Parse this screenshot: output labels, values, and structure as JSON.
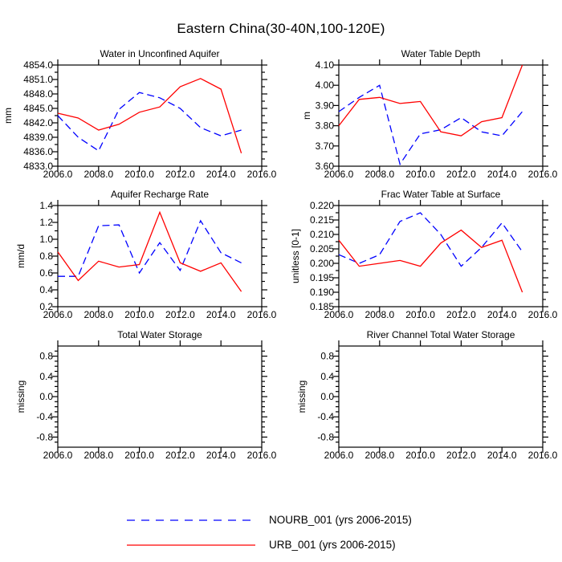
{
  "figure": {
    "title": "Eastern China(30-40N,100-120E)"
  },
  "chart_data": {
    "type": "line",
    "title": "Eastern China(30-40N,100-120E)",
    "x": [
      2006,
      2007,
      2008,
      2009,
      2010,
      2011,
      2012,
      2013,
      2014,
      2015
    ],
    "xlim": [
      2006,
      2016
    ],
    "xticks": {
      "values": [
        2006,
        2008,
        2010,
        2012,
        2014,
        2016
      ],
      "labels": [
        "2006.0",
        "2008.0",
        "2010.0",
        "2012.0",
        "2014.0",
        "2016.0"
      ]
    },
    "grid": false,
    "legend_position": "bottom",
    "series_meta": [
      {
        "id": "NOURB_001",
        "label": "NOURB_001 (yrs 2006-2015)",
        "color": "#0000ff",
        "style": "dashed"
      },
      {
        "id": "URB_001",
        "label": "URB_001 (yrs 2006-2015)",
        "color": "#ff0000",
        "style": "solid"
      }
    ],
    "panels": [
      {
        "title": "Water in Unconfined Aquifer",
        "ylabel": "mm",
        "ylim": [
          4833.0,
          4854.0
        ],
        "yticks": [
          4854.0,
          4851.0,
          4848.0,
          4845.0,
          4842.0,
          4839.0,
          4836.0,
          4833.0
        ],
        "ytick_labels": [
          "4854.0",
          "4851.0",
          "4848.0",
          "4845.0",
          "4842.0",
          "4839.0",
          "4836.0",
          "4833.0"
        ],
        "minor_divisions": 2,
        "series": {
          "NOURB_001": [
            4843.5,
            4839.0,
            4836.2,
            4844.8,
            4848.3,
            4847.2,
            4845.0,
            4841.0,
            4839.3,
            4840.5
          ],
          "URB_001": [
            4844.0,
            4843.0,
            4840.5,
            4841.7,
            4844.2,
            4845.3,
            4849.5,
            4851.2,
            4849.0,
            4835.7
          ]
        }
      },
      {
        "title": "Water Table Depth",
        "ylabel": "m",
        "ylim": [
          3.6,
          4.1
        ],
        "yticks": [
          4.1,
          4.0,
          3.9,
          3.8,
          3.7,
          3.6
        ],
        "ytick_labels": [
          "4.10",
          "4.00",
          "3.90",
          "3.80",
          "3.70",
          "3.60"
        ],
        "minor_divisions": 2,
        "series": {
          "NOURB_001": [
            3.87,
            3.94,
            4.0,
            3.61,
            3.76,
            3.78,
            3.84,
            3.77,
            3.75,
            3.87
          ],
          "URB_001": [
            3.8,
            3.93,
            3.94,
            3.91,
            3.92,
            3.77,
            3.75,
            3.82,
            3.84,
            4.1
          ]
        }
      },
      {
        "title": "Aquifer Recharge Rate",
        "ylabel": "mm/d",
        "ylim": [
          0.2,
          1.4
        ],
        "yticks": [
          1.4,
          1.2,
          1.0,
          0.8,
          0.6,
          0.4,
          0.2
        ],
        "ytick_labels": [
          "1.4",
          "1.2",
          "1.0",
          "0.8",
          "0.6",
          "0.4",
          "0.2"
        ],
        "minor_divisions": 2,
        "series": {
          "NOURB_001": [
            0.56,
            0.56,
            1.16,
            1.17,
            0.6,
            0.96,
            0.63,
            1.22,
            0.84,
            0.72
          ],
          "URB_001": [
            0.85,
            0.51,
            0.74,
            0.67,
            0.7,
            1.32,
            0.72,
            0.62,
            0.72,
            0.38
          ]
        }
      },
      {
        "title": "Frac Water Table at Surface",
        "ylabel": "unitless [0-1]",
        "ylim": [
          0.185,
          0.22
        ],
        "yticks": [
          0.22,
          0.215,
          0.21,
          0.205,
          0.2,
          0.195,
          0.19,
          0.185
        ],
        "ytick_labels": [
          "0.220",
          "0.215",
          "0.210",
          "0.205",
          "0.200",
          "0.195",
          "0.190",
          "0.185"
        ],
        "minor_divisions": 2,
        "series": {
          "NOURB_001": [
            0.203,
            0.2,
            0.203,
            0.2145,
            0.2175,
            0.21,
            0.199,
            0.2055,
            0.214,
            0.204
          ],
          "URB_001": [
            0.208,
            0.199,
            0.2,
            0.201,
            0.199,
            0.207,
            0.2115,
            0.2055,
            0.208,
            0.19
          ]
        }
      },
      {
        "title": "Total Water Storage",
        "ylabel": "missing",
        "ylim": [
          -1.0,
          1.0
        ],
        "yticks": [
          0.8,
          0.4,
          0.0,
          -0.4,
          -0.8
        ],
        "ytick_labels": [
          "0.8",
          "0.4",
          "0.0",
          "-0.4",
          "-0.8"
        ],
        "minor_divisions": 4,
        "series": {}
      },
      {
        "title": "River Channel Total Water Storage",
        "ylabel": "missing",
        "ylim": [
          -1.0,
          1.0
        ],
        "yticks": [
          0.8,
          0.4,
          0.0,
          -0.4,
          -0.8
        ],
        "ytick_labels": [
          "0.8",
          "0.4",
          "0.0",
          "-0.4",
          "-0.8"
        ],
        "minor_divisions": 4,
        "series": {}
      }
    ]
  },
  "legend": {
    "entries": [
      {
        "label": "NOURB_001 (yrs 2006-2015)"
      },
      {
        "label": "URB_001 (yrs 2006-2015)"
      }
    ]
  }
}
